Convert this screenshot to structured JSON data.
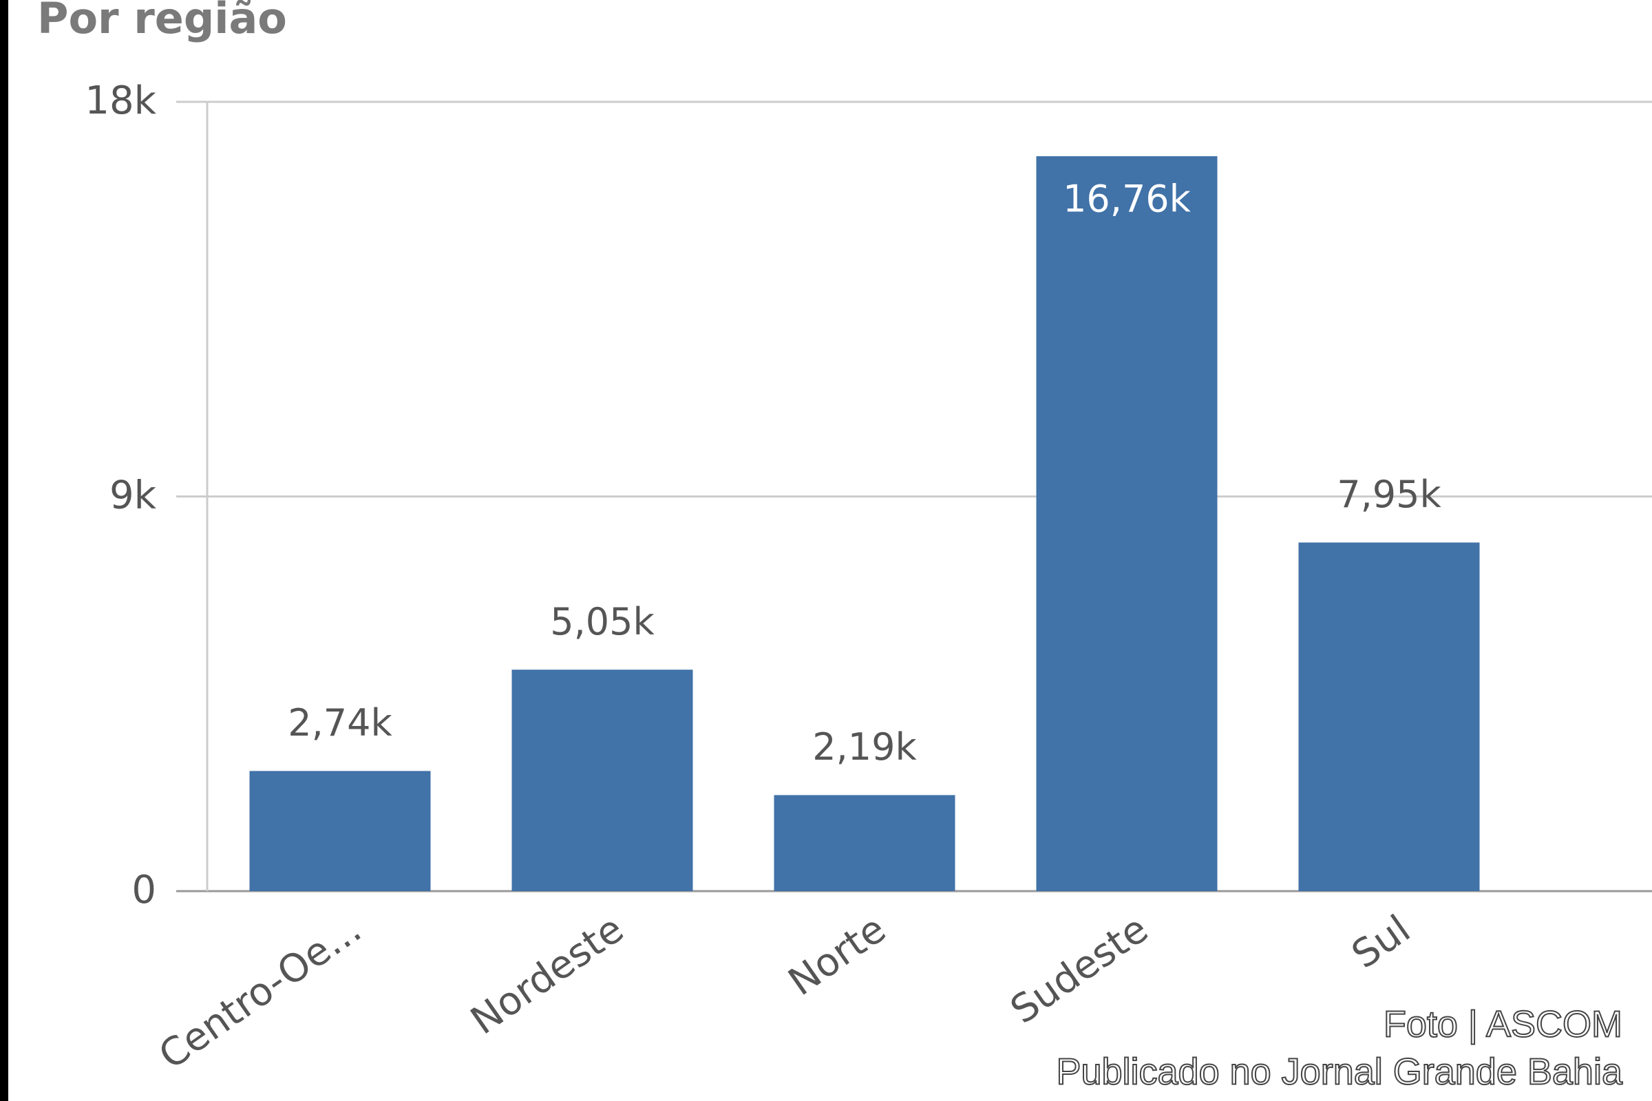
{
  "chart_data": {
    "type": "bar",
    "title": "Por região",
    "categories": [
      "Centro-Oe...",
      "Nordeste",
      "Norte",
      "Sudeste",
      "Sul"
    ],
    "values": [
      2740,
      5050,
      2190,
      16760,
      7950
    ],
    "value_labels": [
      "2,74k",
      "5,05k",
      "2,19k",
      "16,76k",
      "7,95k"
    ],
    "color": "#4172a8",
    "ylim": [
      0,
      18000
    ],
    "yticks": [
      0,
      {
        "value": 9000,
        "label": "9k"
      },
      {
        "value": 18000,
        "label": "18k"
      }
    ],
    "grid": true,
    "annotations": [
      "Foto | ASCOM",
      "Publicado no Jornal Grande Bahia"
    ]
  }
}
